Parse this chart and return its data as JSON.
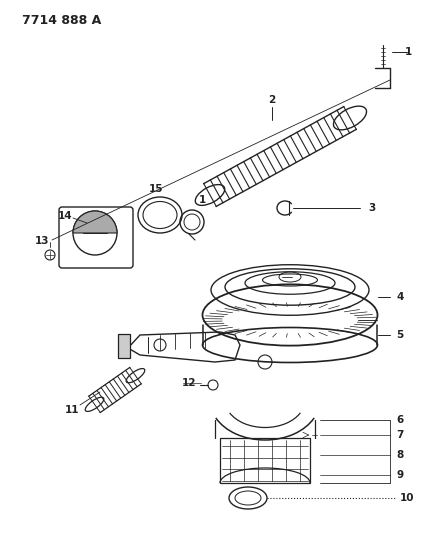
{
  "title": "7714 888 A",
  "bg_color": "#ffffff",
  "lc": "#222222",
  "figsize": [
    4.28,
    5.33
  ],
  "dpi": 100
}
